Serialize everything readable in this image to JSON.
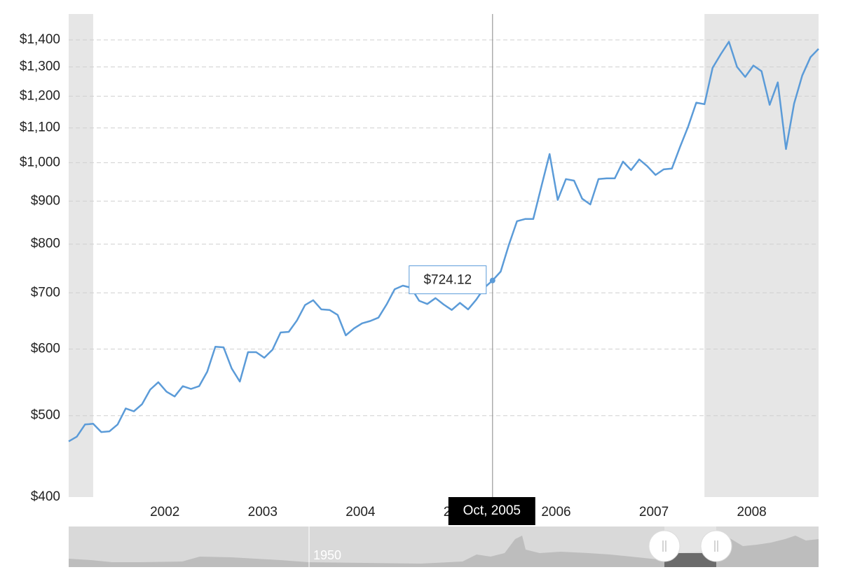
{
  "chart_data": {
    "type": "line",
    "x": [
      "2001-06",
      "2001-07",
      "2001-08",
      "2001-09",
      "2001-10",
      "2001-11",
      "2001-12",
      "2002-01",
      "2002-02",
      "2002-03",
      "2002-04",
      "2002-05",
      "2002-06",
      "2002-07",
      "2002-08",
      "2002-09",
      "2002-10",
      "2002-11",
      "2002-12",
      "2003-01",
      "2003-02",
      "2003-03",
      "2003-04",
      "2003-05",
      "2003-06",
      "2003-07",
      "2003-08",
      "2003-09",
      "2003-10",
      "2003-11",
      "2003-12",
      "2004-01",
      "2004-02",
      "2004-03",
      "2004-04",
      "2004-05",
      "2004-06",
      "2004-07",
      "2004-08",
      "2004-09",
      "2004-10",
      "2004-11",
      "2004-12",
      "2005-01",
      "2005-02",
      "2005-03",
      "2005-04",
      "2005-05",
      "2005-06",
      "2005-07",
      "2005-08",
      "2005-09",
      "2005-10",
      "2005-11",
      "2005-12",
      "2006-01",
      "2006-02",
      "2006-03",
      "2006-04",
      "2006-05",
      "2006-06",
      "2006-07",
      "2006-08",
      "2006-09",
      "2006-10",
      "2006-11",
      "2006-12",
      "2007-01",
      "2007-02",
      "2007-03",
      "2007-04",
      "2007-05",
      "2007-06",
      "2007-07",
      "2007-08",
      "2007-09",
      "2007-10",
      "2007-11",
      "2007-12",
      "2008-01",
      "2008-02",
      "2008-03",
      "2008-04",
      "2008-05",
      "2008-06",
      "2008-07",
      "2008-08",
      "2008-09",
      "2008-10",
      "2008-11",
      "2008-12",
      "2009-01",
      "2009-02"
    ],
    "values": [
      466,
      472,
      488,
      489,
      478,
      479,
      488,
      510,
      506,
      516,
      537,
      548,
      534,
      527,
      542,
      538,
      542,
      564,
      604,
      603,
      569,
      549,
      595,
      595,
      586,
      599,
      628,
      629,
      649,
      677,
      686,
      669,
      668,
      659,
      623,
      635,
      644,
      648,
      654,
      678,
      707,
      714,
      710,
      685,
      679,
      690,
      678,
      668,
      681,
      669,
      687,
      710,
      724.12,
      742,
      798,
      852,
      857,
      857,
      938,
      1024,
      903,
      956,
      952,
      906,
      892,
      956,
      958,
      958,
      1003,
      980,
      1009,
      990,
      967,
      982,
      984,
      1044,
      1104,
      1179,
      1174,
      1297,
      1346,
      1393,
      1300,
      1265,
      1305,
      1285,
      1172,
      1246,
      1038,
      1176,
      1270,
      1335,
      1366
    ],
    "color": "#5b9bd8",
    "log_scale": true,
    "grid": true,
    "xlim": [
      "2001-06",
      "2009-02"
    ],
    "xticks": [
      2002,
      2003,
      2004,
      2005,
      2006,
      2007,
      2008
    ],
    "ylim": [
      400,
      1503
    ],
    "yticks": [
      {
        "value": 400,
        "label": "$400"
      },
      {
        "value": 500,
        "label": "$500"
      },
      {
        "value": 600,
        "label": "$600"
      },
      {
        "value": 700,
        "label": "$700"
      },
      {
        "value": 800,
        "label": "$800"
      },
      {
        "value": 900,
        "label": "$900"
      },
      {
        "value": 1000,
        "label": "$1,000"
      },
      {
        "value": 1100,
        "label": "$1,100"
      },
      {
        "value": 1200,
        "label": "$1,200"
      },
      {
        "value": 1300,
        "label": "$1,300"
      },
      {
        "value": 1400,
        "label": "$1,400"
      }
    ],
    "shaded_ranges": [
      [
        "2001-03",
        "2001-09"
      ],
      [
        "2007-12",
        "2009-06"
      ]
    ],
    "shade_color": "#e6e6e6",
    "tooltip": {
      "x": "2005-10",
      "date_label": "Oct, 2005",
      "value": 724.12,
      "value_label": "$724.12"
    },
    "navigator_label": "1950"
  }
}
